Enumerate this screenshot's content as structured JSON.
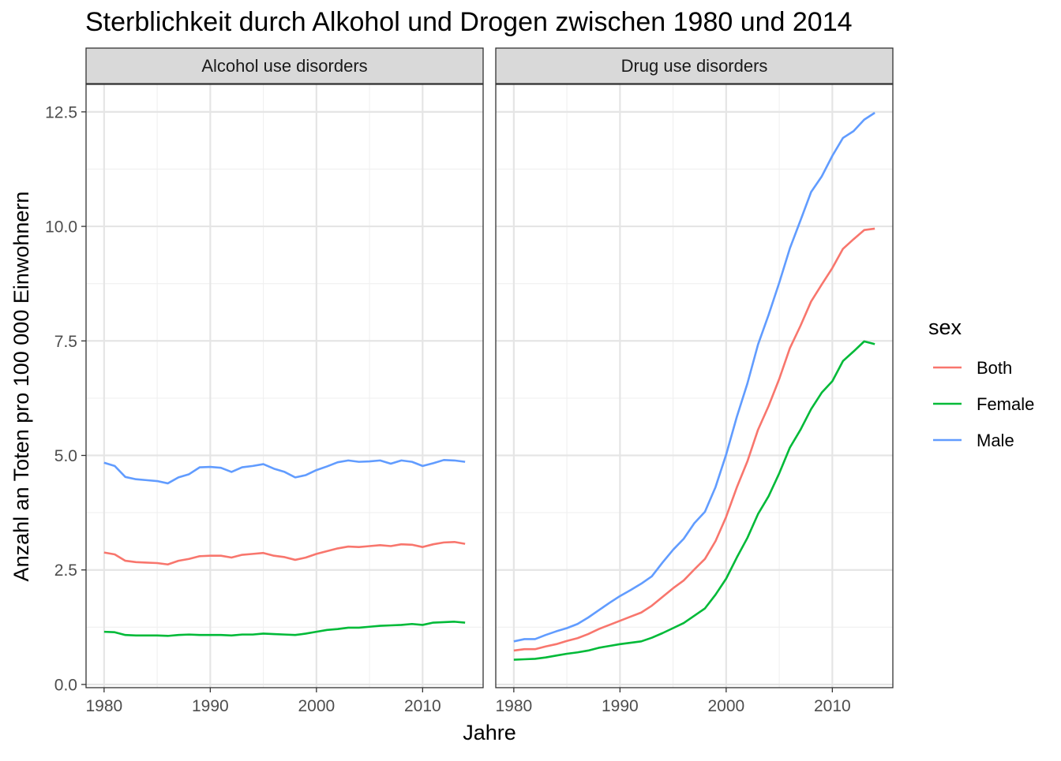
{
  "chart_data": {
    "type": "line",
    "title": "Sterblichkeit durch Alkohol und Drogen zwischen 1980 und 2014",
    "xlabel": "Jahre",
    "ylabel": "Anzahl an Toten pro 100 000 Einwohnern",
    "xlim": [
      1980,
      2014
    ],
    "ylim": [
      0,
      12.5
    ],
    "x_ticks": [
      1980,
      1990,
      2000,
      2010
    ],
    "y_ticks": [
      "0.0",
      "2.5",
      "5.0",
      "7.5",
      "10.0",
      "12.5"
    ],
    "grid": true,
    "legend": {
      "title": "sex",
      "position": "right",
      "entries": [
        {
          "name": "Both",
          "color": "#F8766D"
        },
        {
          "name": "Female",
          "color": "#00BA38"
        },
        {
          "name": "Male",
          "color": "#619CFF"
        }
      ]
    },
    "x": [
      1980,
      1981,
      1982,
      1983,
      1984,
      1985,
      1986,
      1987,
      1988,
      1989,
      1990,
      1991,
      1992,
      1993,
      1994,
      1995,
      1996,
      1997,
      1998,
      1999,
      2000,
      2001,
      2002,
      2003,
      2004,
      2005,
      2006,
      2007,
      2008,
      2009,
      2010,
      2011,
      2012,
      2013,
      2014
    ],
    "panels": [
      {
        "title": "Alcohol use disorders",
        "series": [
          {
            "name": "Both",
            "values": [
              2.88,
              2.84,
              2.7,
              2.67,
              2.66,
              2.65,
              2.62,
              2.7,
              2.74,
              2.8,
              2.81,
              2.81,
              2.77,
              2.83,
              2.85,
              2.87,
              2.81,
              2.78,
              2.72,
              2.77,
              2.85,
              2.91,
              2.97,
              3.01,
              3.0,
              3.02,
              3.04,
              3.02,
              3.06,
              3.05,
              3.0,
              3.06,
              3.1,
              3.11,
              3.07
            ]
          },
          {
            "name": "Female",
            "values": [
              1.15,
              1.14,
              1.08,
              1.07,
              1.07,
              1.07,
              1.06,
              1.08,
              1.09,
              1.08,
              1.08,
              1.08,
              1.07,
              1.09,
              1.09,
              1.11,
              1.1,
              1.09,
              1.08,
              1.11,
              1.15,
              1.19,
              1.21,
              1.24,
              1.24,
              1.26,
              1.28,
              1.29,
              1.3,
              1.32,
              1.3,
              1.35,
              1.36,
              1.37,
              1.35
            ]
          },
          {
            "name": "Male",
            "values": [
              4.84,
              4.77,
              4.53,
              4.48,
              4.46,
              4.44,
              4.39,
              4.52,
              4.59,
              4.74,
              4.75,
              4.73,
              4.64,
              4.74,
              4.77,
              4.81,
              4.71,
              4.64,
              4.52,
              4.57,
              4.68,
              4.76,
              4.85,
              4.89,
              4.86,
              4.87,
              4.89,
              4.82,
              4.89,
              4.86,
              4.77,
              4.83,
              4.9,
              4.89,
              4.86
            ]
          }
        ]
      },
      {
        "title": "Drug use disorders",
        "series": [
          {
            "name": "Both",
            "values": [
              0.74,
              0.77,
              0.77,
              0.83,
              0.88,
              0.95,
              1.01,
              1.1,
              1.21,
              1.3,
              1.39,
              1.48,
              1.57,
              1.72,
              1.91,
              2.1,
              2.27,
              2.51,
              2.74,
              3.13,
              3.66,
              4.3,
              4.87,
              5.56,
              6.08,
              6.67,
              7.34,
              7.83,
              8.36,
              8.73,
              9.09,
              9.51,
              9.72,
              9.92,
              9.95
            ]
          },
          {
            "name": "Female",
            "values": [
              0.54,
              0.55,
              0.56,
              0.59,
              0.63,
              0.67,
              0.7,
              0.74,
              0.8,
              0.84,
              0.88,
              0.91,
              0.94,
              1.02,
              1.12,
              1.23,
              1.34,
              1.5,
              1.66,
              1.96,
              2.31,
              2.77,
              3.2,
              3.72,
              4.11,
              4.61,
              5.17,
              5.56,
              6.01,
              6.37,
              6.62,
              7.06,
              7.27,
              7.49,
              7.43
            ]
          },
          {
            "name": "Male",
            "values": [
              0.94,
              0.99,
              0.99,
              1.08,
              1.16,
              1.23,
              1.32,
              1.46,
              1.62,
              1.78,
              1.93,
              2.06,
              2.2,
              2.36,
              2.66,
              2.94,
              3.18,
              3.52,
              3.77,
              4.31,
              5.02,
              5.84,
              6.57,
              7.42,
              8.07,
              8.77,
              9.52,
              10.13,
              10.75,
              11.09,
              11.54,
              11.93,
              12.08,
              12.33,
              12.48
            ]
          }
        ]
      }
    ]
  }
}
